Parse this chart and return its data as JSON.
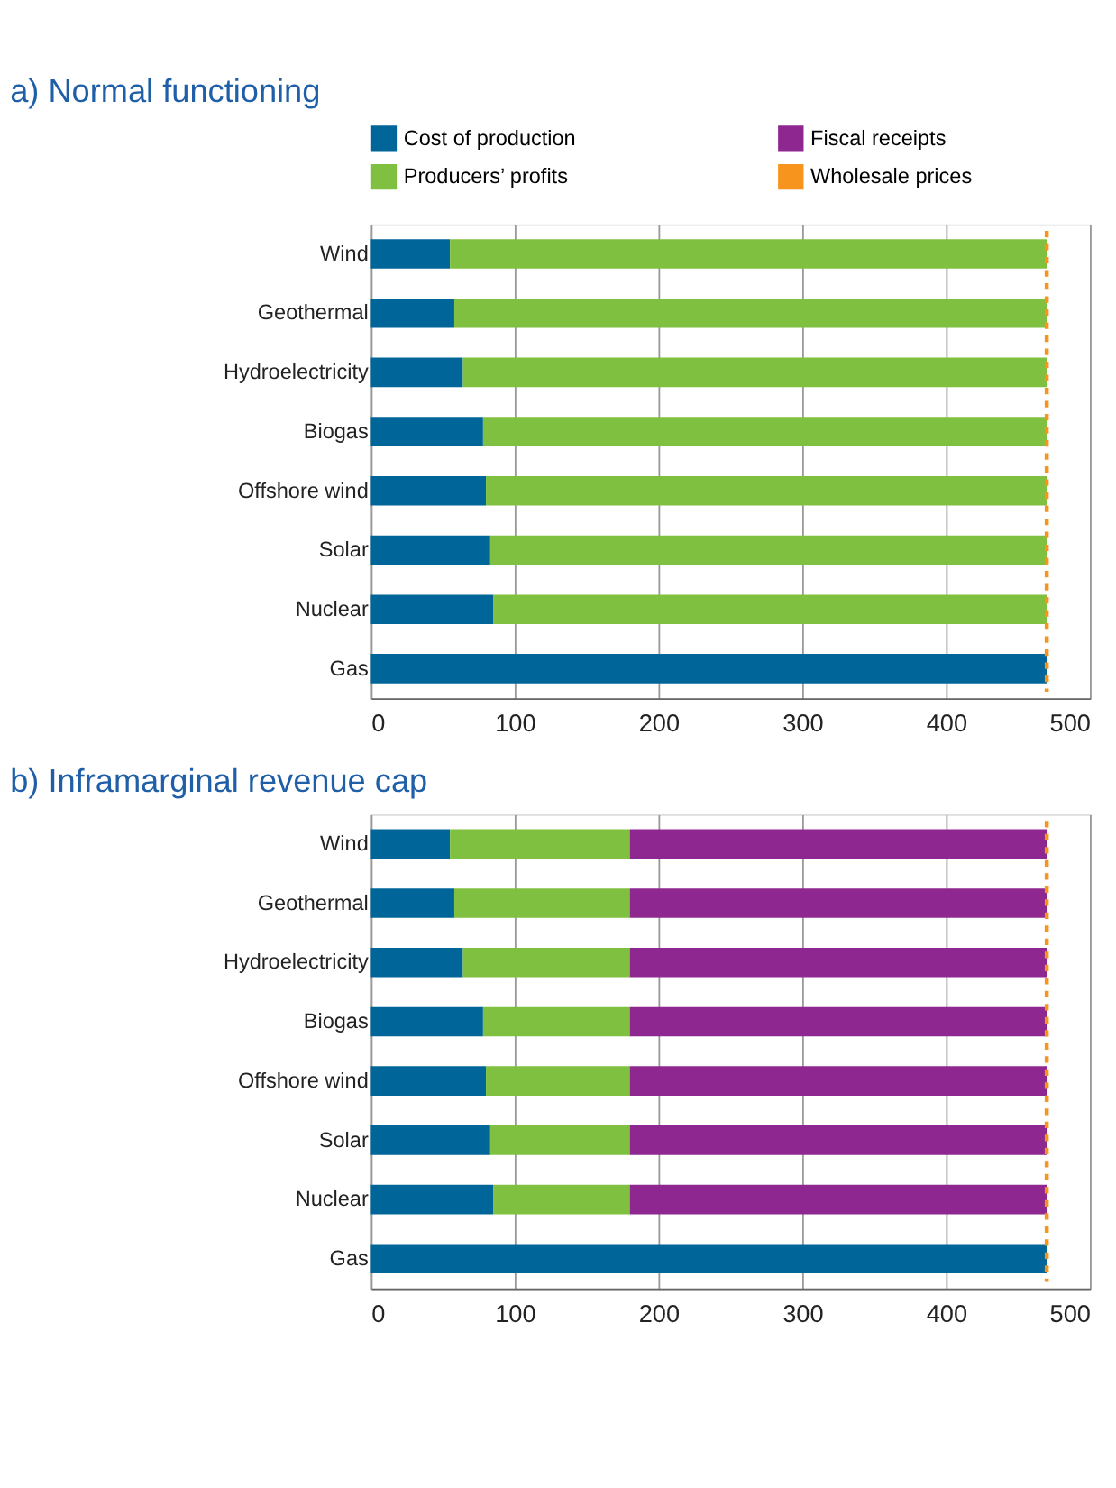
{
  "chart_data": [
    {
      "type": "bar",
      "title": "a)  Normal functioning",
      "orientation": "horizontal",
      "stacked": true,
      "legend": "top",
      "categories": [
        "Wind",
        "Geothermal",
        "Hydroelectricity",
        "Biogas",
        "Offshore wind",
        "Solar",
        "Nuclear",
        "Gas"
      ],
      "series": [
        {
          "name": "Cost of production",
          "color": "#006699",
          "values": [
            55,
            58,
            64,
            78,
            80,
            83,
            85,
            470
          ]
        },
        {
          "name": "Producers’ profits",
          "color": "#80c041",
          "values": [
            415,
            412,
            406,
            392,
            390,
            387,
            385,
            0
          ]
        },
        {
          "name": "Fiscal receipts",
          "color": "#8e278f",
          "values": [
            0,
            0,
            0,
            0,
            0,
            0,
            0,
            0
          ]
        }
      ],
      "ref_lines": [
        {
          "axis": "x",
          "value": 470,
          "label": "Wholesale prices",
          "color": "#f7941d",
          "line_style": "dashed"
        }
      ],
      "xlim": [
        0,
        500
      ],
      "xticks": [
        0,
        100,
        200,
        300,
        400,
        500
      ],
      "grid": "x"
    },
    {
      "type": "bar",
      "title": "b)  Inframarginal revenue cap",
      "orientation": "horizontal",
      "stacked": true,
      "legend": false,
      "categories": [
        "Wind",
        "Geothermal",
        "Hydroelectricity",
        "Biogas",
        "Offshore wind",
        "Solar",
        "Nuclear",
        "Gas"
      ],
      "series": [
        {
          "color": "#006699",
          "values": [
            55,
            58,
            64,
            78,
            80,
            83,
            85,
            470
          ]
        },
        {
          "color": "#80c041",
          "values": [
            125,
            122,
            116,
            102,
            100,
            97,
            95,
            0
          ]
        },
        {
          "color": "#8e278f",
          "values": [
            290,
            290,
            290,
            290,
            290,
            290,
            290,
            0
          ]
        }
      ],
      "ref_lines": [
        {
          "axis": "x",
          "value": 470,
          "color": "#f7941d",
          "line_style": "dashed"
        }
      ],
      "xlim": [
        0,
        500
      ],
      "xticks": [
        0,
        100,
        200,
        300,
        400,
        500
      ],
      "grid": "x"
    }
  ]
}
